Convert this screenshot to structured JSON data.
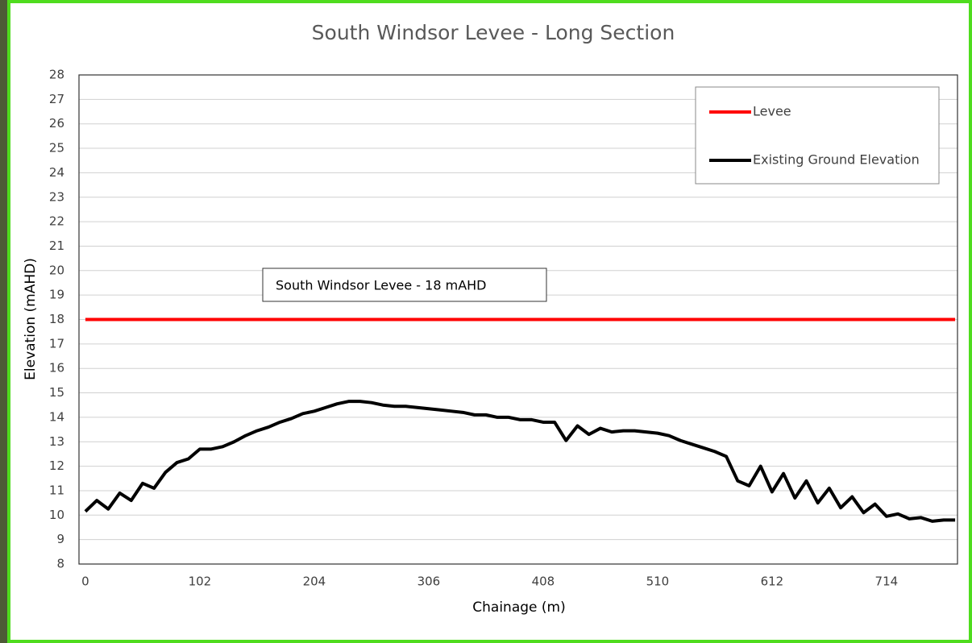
{
  "chart_data": {
    "type": "line",
    "title": "South Windsor Levee - Long Section",
    "x_label": "Chainage (m)",
    "y_label": "Elevation (mAHD)",
    "annotation": "South Windsor Levee - 18 mAHD",
    "x": [
      0,
      10.2,
      20.4,
      30.6,
      40.8,
      51,
      61.2,
      71.4,
      81.6,
      91.8,
      102,
      112.2,
      122.4,
      132.6,
      142.8,
      153,
      163.2,
      173.4,
      183.6,
      193.8,
      204,
      214.2,
      224.4,
      234.6,
      244.8,
      255,
      265.2,
      275.4,
      285.6,
      295.8,
      306,
      316.2,
      326.4,
      336.6,
      346.8,
      357,
      367.2,
      377.4,
      387.6,
      397.8,
      408,
      418.2,
      428.4,
      438.6,
      448.8,
      459,
      469.2,
      479.4,
      489.6,
      499.8,
      510,
      520.2,
      530.4,
      540.6,
      550.8,
      561,
      571.2,
      581.4,
      591.6,
      601.8,
      612,
      622.2,
      632.4,
      642.6,
      652.8,
      663,
      673.2,
      683.4,
      693.6,
      703.8,
      714,
      724.2,
      734.4,
      744.6,
      754.8,
      765,
      775.2
    ],
    "series": [
      {
        "name": "Levee",
        "color": "#ff0000",
        "values": [
          18,
          18,
          18,
          18,
          18,
          18,
          18,
          18,
          18,
          18,
          18,
          18,
          18,
          18,
          18,
          18,
          18,
          18,
          18,
          18,
          18,
          18,
          18,
          18,
          18,
          18,
          18,
          18,
          18,
          18,
          18,
          18,
          18,
          18,
          18,
          18,
          18,
          18,
          18,
          18,
          18,
          18,
          18,
          18,
          18,
          18,
          18,
          18,
          18,
          18,
          18,
          18,
          18,
          18,
          18,
          18,
          18,
          18,
          18,
          18,
          18,
          18,
          18,
          18,
          18,
          18,
          18,
          18,
          18,
          18,
          18,
          18,
          18,
          18,
          18,
          18,
          18
        ]
      },
      {
        "name": "Existing Ground Elevation",
        "color": "#000000",
        "values": [
          10.15,
          10.6,
          10.25,
          10.9,
          10.6,
          11.3,
          11.1,
          11.75,
          12.15,
          12.3,
          12.7,
          12.7,
          12.8,
          13.0,
          13.25,
          13.45,
          13.6,
          13.8,
          13.95,
          14.15,
          14.25,
          14.4,
          14.55,
          14.65,
          14.65,
          14.6,
          14.5,
          14.45,
          14.45,
          14.4,
          14.35,
          14.3,
          14.25,
          14.2,
          14.1,
          14.1,
          14.0,
          14.0,
          13.9,
          13.9,
          13.8,
          13.8,
          13.05,
          13.65,
          13.3,
          13.55,
          13.4,
          13.45,
          13.45,
          13.4,
          13.35,
          13.25,
          13.05,
          12.9,
          12.75,
          12.6,
          12.4,
          11.4,
          11.2,
          12.0,
          10.95,
          11.7,
          10.7,
          11.4,
          10.5,
          11.1,
          10.3,
          10.75,
          10.1,
          10.45,
          9.95,
          10.05,
          9.85,
          9.9,
          9.75,
          9.8,
          9.8
        ]
      }
    ],
    "xlim": [
      -5.7,
      777.3
    ],
    "xticks": [
      0,
      102,
      204,
      306,
      408,
      510,
      612,
      714
    ],
    "ylim": [
      8,
      28
    ],
    "yticks": [
      8,
      9,
      10,
      11,
      12,
      13,
      14,
      15,
      16,
      17,
      18,
      19,
      20,
      21,
      22,
      23,
      24,
      25,
      26,
      27,
      28
    ],
    "grid": true,
    "legend": "top-right"
  }
}
